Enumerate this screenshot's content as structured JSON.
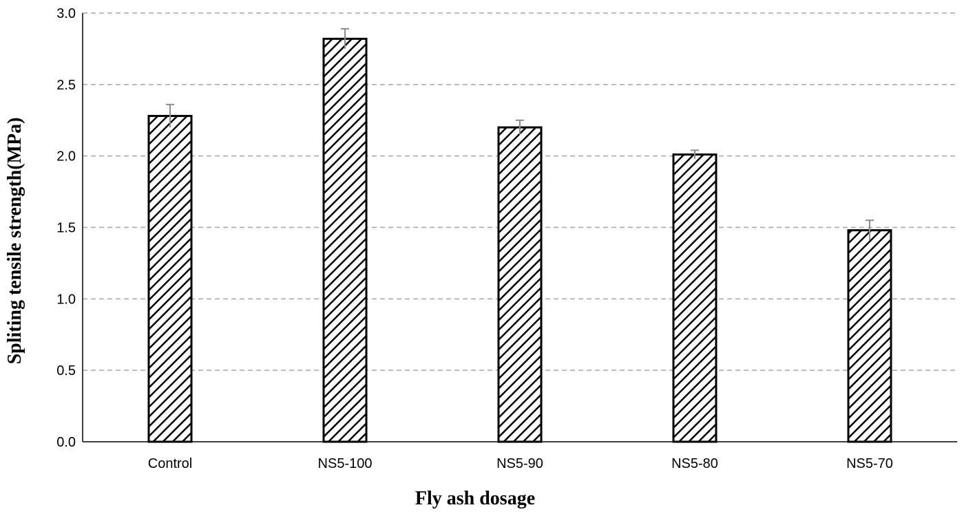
{
  "chart_data": {
    "type": "bar",
    "title": "",
    "xlabel": "Fly ash dosage",
    "ylabel": "Spliting tensile strength(MPa)",
    "categories": [
      "Control",
      "NS5-100",
      "NS5-90",
      "NS5-80",
      "NS5-70"
    ],
    "values": [
      2.28,
      2.82,
      2.2,
      2.01,
      1.48
    ],
    "errors": [
      0.08,
      0.07,
      0.05,
      0.03,
      0.07
    ],
    "ylim": [
      0,
      3.0
    ],
    "yticks": [
      "0.0",
      "0.5",
      "1.0",
      "1.5",
      "2.0",
      "2.5",
      "3.0"
    ],
    "grid": true,
    "bar_fill": "diagonal-hatch",
    "colors": {
      "bar_stroke": "#000000",
      "hatch": "#000000",
      "grid": "#a6a6a6",
      "error_bar": "#8c8c8c"
    }
  }
}
